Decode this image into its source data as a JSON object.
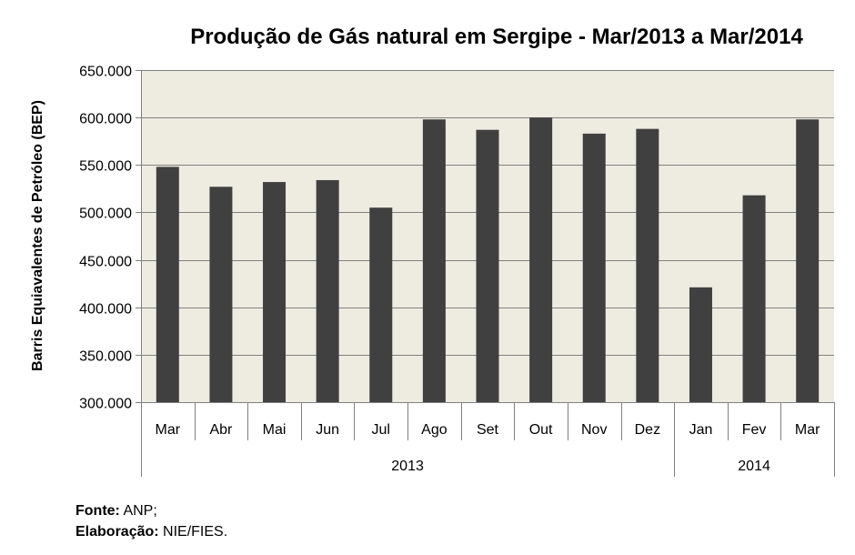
{
  "chart_data": {
    "type": "bar",
    "title": "Produção de Gás natural em Sergipe - Mar/2013 a Mar/2014",
    "ylabel": "Barris Equiavalentes de Petróleo (BEP)",
    "xlabel": "",
    "ylim": [
      300000,
      650000
    ],
    "y_ticks": [
      "300.000",
      "350.000",
      "400.000",
      "450.000",
      "500.000",
      "550.000",
      "600.000",
      "650.000"
    ],
    "y_tick_values": [
      300000,
      350000,
      400000,
      450000,
      500000,
      550000,
      600000,
      650000
    ],
    "categories": [
      "Mar",
      "Abr",
      "Mai",
      "Jun",
      "Jul",
      "Ago",
      "Set",
      "Out",
      "Nov",
      "Dez",
      "Jan",
      "Fev",
      "Mar"
    ],
    "year_groups": [
      {
        "label": "2013",
        "count": 10
      },
      {
        "label": "2014",
        "count": 3
      }
    ],
    "values": [
      548000,
      527000,
      532000,
      534000,
      505000,
      598000,
      587000,
      600000,
      583000,
      588000,
      421000,
      518000,
      598000
    ],
    "grid": true,
    "colors": {
      "bar": "#404040",
      "plot_bg": "#eeece1",
      "grid": "#808080",
      "axis": "#808080"
    }
  },
  "footer": {
    "source_label": "Fonte:",
    "source_value": " ANP;",
    "prepared_label": "Elaboração:",
    "prepared_value": " NIE/FIES."
  }
}
